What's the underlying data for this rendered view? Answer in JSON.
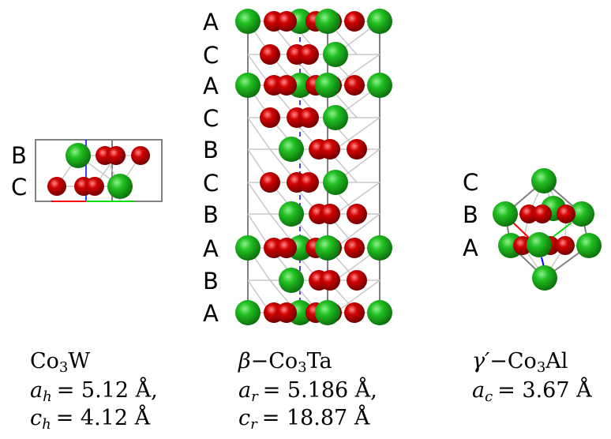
{
  "structures": [
    {
      "id": "co3w",
      "layers": [
        "B",
        "C"
      ],
      "formula": {
        "prefix": "",
        "element1": "Co",
        "sub": "3",
        "element2": "W"
      },
      "params": [
        {
          "symbol": "a",
          "sub": "h",
          "value": "= 5.12 Å,"
        },
        {
          "symbol": "c",
          "sub": "h",
          "value": "= 4.12 Å"
        }
      ]
    },
    {
      "id": "beta-co3ta",
      "layers": [
        "A",
        "C",
        "A",
        "C",
        "B",
        "C",
        "B",
        "A",
        "B",
        "A"
      ],
      "formula": {
        "prefix": "β−",
        "element1": "Co",
        "sub": "3",
        "element2": "Ta"
      },
      "params": [
        {
          "symbol": "a",
          "sub": "r",
          "value": "= 5.186 Å,"
        },
        {
          "symbol": "c",
          "sub": "r",
          "value": "= 18.87 Å"
        }
      ]
    },
    {
      "id": "gamma-prime-co3al",
      "layers": [
        "C",
        "B",
        "A"
      ],
      "formula": {
        "prefix": "γ′−",
        "element1": "Co",
        "sub": "3",
        "element2": "Al"
      },
      "params": [
        {
          "symbol": "a",
          "sub": "c",
          "value": "= 3.67 Å"
        }
      ]
    }
  ],
  "colors": {
    "co_atom": "#cc0000",
    "minority_atom": "#11aa11",
    "axis_a": "#ff0000",
    "axis_b": "#00dd00",
    "axis_c": "#0000ff"
  }
}
